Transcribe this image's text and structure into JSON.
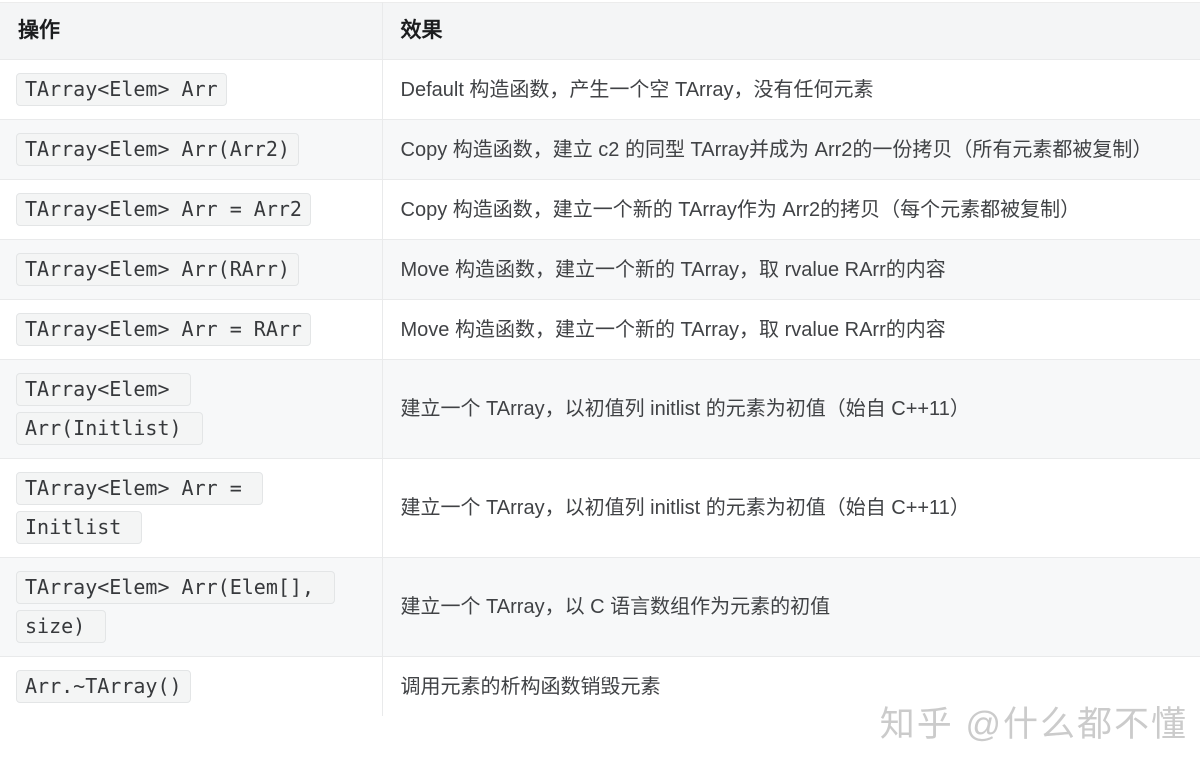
{
  "colors": {
    "header_bg": "#f4f5f6",
    "stripe_bg": "#f7f8f9",
    "border": "#e9eaeb",
    "chip_bg": "#f4f5f5",
    "chip_border": "#e3e5e6",
    "header_text": "#1b1c1e",
    "body_text": "#404245",
    "code_text": "#37393c",
    "watermark_text": "#cbcbcb"
  },
  "table": {
    "columns": [
      "操作",
      "效果"
    ],
    "rows": [
      {
        "code_lines": [
          "TArray<Elem> Arr"
        ],
        "effect": "Default 构造函数，产生一个空 TArray，没有任何元素"
      },
      {
        "code_lines": [
          "TArray<Elem> Arr(Arr2)"
        ],
        "effect": "Copy 构造函数，建立 c2 的同型 TArray并成为 Arr2的一份拷贝（所有元素都被复制）"
      },
      {
        "code_lines": [
          "TArray<Elem> Arr = Arr2"
        ],
        "effect": "Copy 构造函数，建立一个新的 TArray作为 Arr2的拷贝（每个元素都被复制）"
      },
      {
        "code_lines": [
          "TArray<Elem> Arr(RArr)"
        ],
        "effect": "Move 构造函数，建立一个新的 TArray，取 rvalue RArr的内容"
      },
      {
        "code_lines": [
          "TArray<Elem> Arr = RArr"
        ],
        "effect": "Move 构造函数，建立一个新的 TArray，取 rvalue RArr的内容"
      },
      {
        "code_lines": [
          "TArray<Elem> ",
          "Arr(Initlist) "
        ],
        "effect": "建立一个 TArray，以初值列 initlist 的元素为初值（始自 C++11）"
      },
      {
        "code_lines": [
          "TArray<Elem> Arr = ",
          "Initlist "
        ],
        "effect": "建立一个 TArray，以初值列 initlist 的元素为初值（始自 C++11）"
      },
      {
        "code_lines": [
          "TArray<Elem> Arr(Elem[], ",
          "size) "
        ],
        "effect": "建立一个 TArray，以 C 语言数组作为元素的初值"
      },
      {
        "code_lines": [
          "Arr.~TArray()"
        ],
        "effect": "调用元素的析构函数销毁元素"
      }
    ]
  },
  "watermark": {
    "text": "知乎 @什么都不懂"
  }
}
